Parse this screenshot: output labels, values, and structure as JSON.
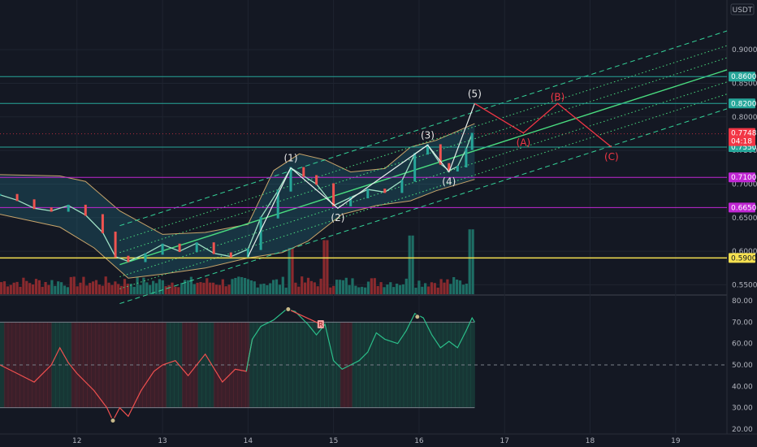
{
  "chart_data": {
    "type": "line",
    "currency": "USDT",
    "price_axis": {
      "range": [
        0.536,
        0.974
      ],
      "ticks": [
        "0.9000",
        "0.8500",
        "0.8000",
        "0.7500",
        "0.7000",
        "0.6500",
        "0.6000",
        "0.5500"
      ]
    },
    "time_axis": {
      "range": [
        11.1,
        19.6
      ],
      "ticks": [
        "12",
        "13",
        "14",
        "15",
        "16",
        "17",
        "18",
        "19"
      ]
    },
    "horizontal_levels": [
      {
        "value": 0.86,
        "label": "0.8600",
        "color": "#26a69a"
      },
      {
        "value": 0.82,
        "label": "0.8200",
        "color": "#26a69a"
      },
      {
        "value": 0.755,
        "label": "0.7550",
        "color": "#26a69a"
      },
      {
        "value": 0.71,
        "label": "0.7100",
        "color": "#c026d3"
      },
      {
        "value": 0.665,
        "label": "0.6650",
        "color": "#c026d3"
      },
      {
        "value": 0.59,
        "label": "0.5900",
        "color": "#f5e050"
      }
    ],
    "current_price": {
      "value": 0.7748,
      "label": "0.7748",
      "countdown": "04:18",
      "color": "#f23645"
    },
    "price_series": [
      {
        "x": 11.1,
        "y": 0.684
      },
      {
        "x": 11.3,
        "y": 0.676
      },
      {
        "x": 11.5,
        "y": 0.664
      },
      {
        "x": 11.7,
        "y": 0.66
      },
      {
        "x": 11.9,
        "y": 0.668
      },
      {
        "x": 12.1,
        "y": 0.654
      },
      {
        "x": 12.3,
        "y": 0.628
      },
      {
        "x": 12.45,
        "y": 0.592
      },
      {
        "x": 12.6,
        "y": 0.585
      },
      {
        "x": 12.8,
        "y": 0.596
      },
      {
        "x": 13.0,
        "y": 0.61
      },
      {
        "x": 13.2,
        "y": 0.6
      },
      {
        "x": 13.4,
        "y": 0.612
      },
      {
        "x": 13.6,
        "y": 0.597
      },
      {
        "x": 13.8,
        "y": 0.592
      },
      {
        "x": 14.0,
        "y": 0.603
      },
      {
        "x": 14.15,
        "y": 0.65
      },
      {
        "x": 14.35,
        "y": 0.69
      },
      {
        "x": 14.5,
        "y": 0.724
      },
      {
        "x": 14.65,
        "y": 0.712
      },
      {
        "x": 14.8,
        "y": 0.7
      },
      {
        "x": 15.0,
        "y": 0.668
      },
      {
        "x": 15.2,
        "y": 0.68
      },
      {
        "x": 15.4,
        "y": 0.692
      },
      {
        "x": 15.6,
        "y": 0.688
      },
      {
        "x": 15.8,
        "y": 0.705
      },
      {
        "x": 15.95,
        "y": 0.745
      },
      {
        "x": 16.1,
        "y": 0.758
      },
      {
        "x": 16.25,
        "y": 0.73
      },
      {
        "x": 16.35,
        "y": 0.72
      },
      {
        "x": 16.45,
        "y": 0.726
      },
      {
        "x": 16.55,
        "y": 0.752
      },
      {
        "x": 16.62,
        "y": 0.775
      }
    ],
    "volume_bars": {
      "count": 150,
      "high_bars": [
        {
          "x": 14.5,
          "value": 30
        },
        {
          "x": 14.9,
          "value": 35
        },
        {
          "x": 15.9,
          "value": 38
        },
        {
          "x": 16.6,
          "value": 42
        }
      ]
    },
    "elliott_waves": {
      "impulse": [
        {
          "label": "(1)",
          "x": 14.5,
          "y": 0.724
        },
        {
          "label": "(2)",
          "x": 15.05,
          "y": 0.664
        },
        {
          "label": "(3)",
          "x": 16.1,
          "y": 0.758
        },
        {
          "label": "(4)",
          "x": 16.35,
          "y": 0.718
        },
        {
          "label": "(5)",
          "x": 16.65,
          "y": 0.82
        }
      ],
      "corrective": [
        {
          "label": "(A)",
          "x": 17.22,
          "y": 0.776
        },
        {
          "label": "(B)",
          "x": 17.62,
          "y": 0.82
        },
        {
          "label": "(C)",
          "x": 18.25,
          "y": 0.755
        }
      ]
    },
    "channel": {
      "start": {
        "x": 12.5,
        "mid": 0.58
      },
      "end": {
        "x": 19.6,
        "mid": 0.87
      },
      "offsets": [
        0.058,
        0.036,
        0.018,
        -0.018,
        -0.036,
        -0.058
      ]
    },
    "bollinger": {
      "upper": [
        {
          "x": 11.1,
          "y": 0.714
        },
        {
          "x": 11.8,
          "y": 0.712
        },
        {
          "x": 12.1,
          "y": 0.704
        },
        {
          "x": 12.5,
          "y": 0.66
        },
        {
          "x": 13.0,
          "y": 0.625
        },
        {
          "x": 13.5,
          "y": 0.628
        },
        {
          "x": 14.0,
          "y": 0.64
        },
        {
          "x": 14.3,
          "y": 0.72
        },
        {
          "x": 14.6,
          "y": 0.745
        },
        {
          "x": 14.9,
          "y": 0.736
        },
        {
          "x": 15.2,
          "y": 0.718
        },
        {
          "x": 15.6,
          "y": 0.723
        },
        {
          "x": 15.9,
          "y": 0.755
        },
        {
          "x": 16.2,
          "y": 0.765
        },
        {
          "x": 16.65,
          "y": 0.79
        }
      ],
      "lower": [
        {
          "x": 16.65,
          "y": 0.707
        },
        {
          "x": 16.2,
          "y": 0.69
        },
        {
          "x": 15.9,
          "y": 0.675
        },
        {
          "x": 15.5,
          "y": 0.668
        },
        {
          "x": 15.1,
          "y": 0.655
        },
        {
          "x": 14.7,
          "y": 0.615
        },
        {
          "x": 14.4,
          "y": 0.598
        },
        {
          "x": 14.0,
          "y": 0.59
        },
        {
          "x": 13.5,
          "y": 0.575
        },
        {
          "x": 13.0,
          "y": 0.566
        },
        {
          "x": 12.6,
          "y": 0.56
        },
        {
          "x": 12.2,
          "y": 0.605
        },
        {
          "x": 11.8,
          "y": 0.636
        },
        {
          "x": 11.1,
          "y": 0.655
        }
      ]
    },
    "indicator": {
      "range": [
        20,
        80
      ],
      "ticks": [
        "80.00",
        "70.00",
        "60.00",
        "50.00",
        "40.00",
        "30.00",
        "20.00"
      ],
      "upper_band": 70,
      "lower_band": 30,
      "mid_line": 50,
      "series": [
        {
          "x": 11.1,
          "y": 50
        },
        {
          "x": 11.3,
          "y": 46
        },
        {
          "x": 11.5,
          "y": 42
        },
        {
          "x": 11.7,
          "y": 50
        },
        {
          "x": 11.8,
          "y": 58
        },
        {
          "x": 11.9,
          "y": 51
        },
        {
          "x": 12.0,
          "y": 46
        },
        {
          "x": 12.2,
          "y": 38
        },
        {
          "x": 12.35,
          "y": 30
        },
        {
          "x": 12.42,
          "y": 24
        },
        {
          "x": 12.5,
          "y": 30
        },
        {
          "x": 12.6,
          "y": 26
        },
        {
          "x": 12.75,
          "y": 38
        },
        {
          "x": 12.9,
          "y": 47
        },
        {
          "x": 13.0,
          "y": 50
        },
        {
          "x": 13.15,
          "y": 52
        },
        {
          "x": 13.3,
          "y": 45
        },
        {
          "x": 13.5,
          "y": 55
        },
        {
          "x": 13.7,
          "y": 42
        },
        {
          "x": 13.85,
          "y": 48
        },
        {
          "x": 13.98,
          "y": 47
        },
        {
          "x": 14.05,
          "y": 62
        },
        {
          "x": 14.15,
          "y": 68
        },
        {
          "x": 14.3,
          "y": 71
        },
        {
          "x": 14.45,
          "y": 76
        },
        {
          "x": 14.55,
          "y": 75
        },
        {
          "x": 14.7,
          "y": 69
        },
        {
          "x": 14.8,
          "y": 64
        },
        {
          "x": 14.9,
          "y": 69
        },
        {
          "x": 15.0,
          "y": 52
        },
        {
          "x": 15.1,
          "y": 48
        },
        {
          "x": 15.2,
          "y": 50
        },
        {
          "x": 15.3,
          "y": 52
        },
        {
          "x": 15.4,
          "y": 56
        },
        {
          "x": 15.5,
          "y": 65
        },
        {
          "x": 15.6,
          "y": 62
        },
        {
          "x": 15.75,
          "y": 60
        },
        {
          "x": 15.85,
          "y": 66
        },
        {
          "x": 15.95,
          "y": 74
        },
        {
          "x": 16.05,
          "y": 72
        },
        {
          "x": 16.15,
          "y": 64
        },
        {
          "x": 16.25,
          "y": 58
        },
        {
          "x": 16.35,
          "y": 61
        },
        {
          "x": 16.45,
          "y": 58
        },
        {
          "x": 16.55,
          "y": 66
        },
        {
          "x": 16.62,
          "y": 72
        },
        {
          "x": 16.65,
          "y": 70
        }
      ],
      "markers": [
        {
          "x": 14.47,
          "y": 76,
          "kind": "circle"
        },
        {
          "x": 14.85,
          "y": 69,
          "kind": "label",
          "text": "R"
        },
        {
          "x": 15.98,
          "y": 72.5,
          "kind": "circle"
        },
        {
          "x": 12.42,
          "y": 24,
          "kind": "circle"
        }
      ]
    }
  }
}
